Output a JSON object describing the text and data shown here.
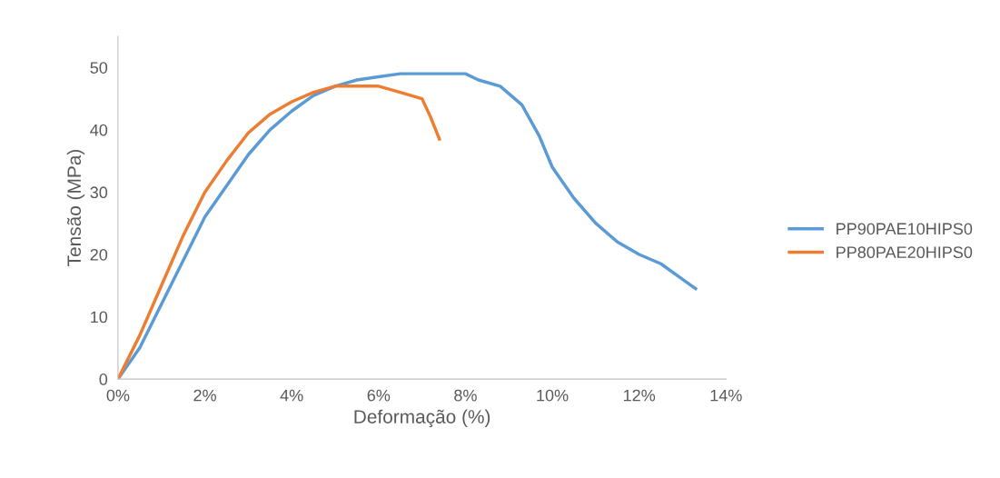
{
  "chart_data": {
    "type": "line",
    "xlabel": "Deformação (%)",
    "ylabel": "Tensão (MPa)",
    "xlim": [
      0,
      14
    ],
    "ylim": [
      0,
      55
    ],
    "xticks": [
      {
        "value": 0,
        "label": "0%"
      },
      {
        "value": 2,
        "label": "2%"
      },
      {
        "value": 4,
        "label": "4%"
      },
      {
        "value": 6,
        "label": "6%"
      },
      {
        "value": 8,
        "label": "8%"
      },
      {
        "value": 10,
        "label": "10%"
      },
      {
        "value": 12,
        "label": "12%"
      },
      {
        "value": 14,
        "label": "14%"
      }
    ],
    "yticks": [
      0,
      10,
      20,
      30,
      40,
      50
    ],
    "grid": false,
    "legend": "right",
    "marker": "none",
    "line_style": "solid",
    "series": [
      {
        "name": "PP90PAE10HIPS0",
        "color": "#5b9bd5",
        "x": [
          0,
          0.5,
          1,
          1.5,
          2,
          2.5,
          3,
          3.5,
          4,
          4.5,
          5,
          5.5,
          6,
          6.5,
          7,
          8,
          8.3,
          8.8,
          9.3,
          9.7,
          10,
          10.5,
          11,
          11.5,
          12,
          12.5,
          13,
          13.3
        ],
        "values": [
          0,
          5,
          12,
          19,
          26,
          31,
          36,
          40,
          43,
          45.5,
          47,
          48,
          48.5,
          49,
          49,
          49,
          48,
          47,
          44,
          39,
          34,
          29,
          25,
          22,
          20,
          18.5,
          16,
          14.5
        ]
      },
      {
        "name": "PP80PAE20HIPS0",
        "color": "#ed7d31",
        "x": [
          0,
          0.5,
          1,
          1.5,
          2,
          2.5,
          3,
          3.5,
          4,
          4.5,
          5,
          6,
          6.5,
          7,
          7.2,
          7.4
        ],
        "values": [
          0,
          7,
          15,
          23,
          30,
          35,
          39.5,
          42.5,
          44.5,
          46,
          47,
          47,
          46,
          45,
          42,
          38.5
        ]
      }
    ]
  }
}
